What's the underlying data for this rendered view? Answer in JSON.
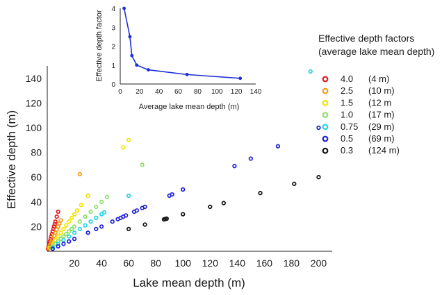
{
  "chart_data": [
    {
      "type": "scatter",
      "title": "",
      "xlabel": "Lake mean depth (m)",
      "ylabel": "Effective depth (m)",
      "xlim": [
        0,
        210
      ],
      "ylim": [
        0,
        150
      ],
      "xticks": [
        20,
        40,
        60,
        80,
        100,
        120,
        140,
        160,
        180,
        200
      ],
      "yticks": [
        20,
        40,
        60,
        80,
        100,
        120,
        140
      ],
      "legend": {
        "title_line1": "Effective depth factors",
        "title_line2": "(average lake mean depth)",
        "placement": "right"
      },
      "series": [
        {
          "name": "4.0",
          "label2": "(4 m)",
          "color": "#e31a1c",
          "factor": 4.0,
          "x": [
            0.5,
            1,
            1.5,
            2,
            2.5,
            3,
            3.5,
            4,
            4.5,
            5,
            5.5,
            6,
            7,
            8
          ],
          "y": [
            2,
            4,
            6,
            8,
            10,
            12,
            14,
            16,
            18,
            20,
            22,
            24,
            28,
            32
          ]
        },
        {
          "name": "2.5",
          "label2": "(10 m)",
          "color": "#f39c12",
          "factor": 2.5,
          "x": [
            1,
            2,
            3,
            4,
            5,
            6,
            7,
            8,
            9,
            10,
            24
          ],
          "y": [
            2.5,
            5,
            7.5,
            10,
            12.5,
            15,
            17.5,
            20,
            22.5,
            25,
            62.5
          ]
        },
        {
          "name": "1.5",
          "label2": "(12 m",
          "color": "#f1e400",
          "factor": 1.5,
          "x": [
            2,
            4,
            6,
            8,
            10,
            12,
            14,
            16,
            18,
            20,
            22,
            25,
            30,
            56,
            60
          ],
          "y": [
            3,
            6,
            9,
            12,
            15,
            18,
            21,
            24,
            27,
            30,
            33,
            37.5,
            45,
            84,
            90
          ]
        },
        {
          "name": "1.0",
          "label2": "(17 m)",
          "color": "#8ee06a",
          "factor": 1.0,
          "x": [
            4,
            6,
            8,
            10,
            12,
            14,
            16,
            18,
            20,
            24,
            28,
            32,
            36,
            40,
            44,
            70
          ],
          "y": [
            4,
            6,
            8,
            10,
            12,
            14,
            16,
            18,
            20,
            24,
            28,
            32,
            36,
            40,
            44,
            70
          ]
        },
        {
          "name": "0.75",
          "label2": "(29 m)",
          "color": "#22d3e6",
          "factor": 0.75,
          "x": [
            4,
            8,
            12,
            16,
            20,
            24,
            28,
            32,
            36,
            40,
            42,
            60,
            194
          ],
          "y": [
            3,
            6,
            9,
            12,
            15,
            18,
            21,
            24,
            27,
            30,
            31.5,
            45,
            145.5
          ]
        },
        {
          "name": "0.5",
          "label2": "(69 m)",
          "color": "#1f1fd6",
          "factor": 0.5,
          "x": [
            4,
            8,
            12,
            16,
            20,
            30,
            36,
            40,
            48,
            52,
            54,
            56,
            58,
            64,
            66,
            70,
            72,
            90,
            92,
            100,
            138,
            150,
            170,
            200
          ],
          "y": [
            2,
            4,
            6,
            8,
            10,
            15,
            18,
            20,
            24,
            26,
            27,
            28,
            29,
            32,
            33,
            35,
            36,
            45,
            46,
            50,
            69,
            75,
            85,
            100
          ]
        },
        {
          "name": "0.3",
          "label2": "(124 m)",
          "color": "#111111",
          "factor": 0.3,
          "x": [
            60,
            72,
            86,
            87,
            88,
            100,
            120,
            130,
            157,
            182,
            200
          ],
          "y": [
            18,
            21.6,
            25.8,
            26.1,
            26.4,
            30,
            36,
            39,
            47.1,
            54.6,
            60
          ]
        }
      ]
    },
    {
      "type": "line",
      "title": "",
      "xlabel": "Average lake mean depth (m)",
      "ylabel": "Effective depth factor",
      "xlim": [
        0,
        140
      ],
      "ylim": [
        0,
        4
      ],
      "xticks": [
        0,
        20,
        40,
        60,
        80,
        100,
        120,
        140
      ],
      "yticks": [
        0,
        1,
        2,
        3,
        4
      ],
      "color": "#1f2fd6",
      "x": [
        4,
        10,
        12,
        17,
        29,
        69,
        124
      ],
      "y": [
        4.0,
        2.5,
        1.5,
        1.0,
        0.75,
        0.5,
        0.3
      ]
    }
  ]
}
